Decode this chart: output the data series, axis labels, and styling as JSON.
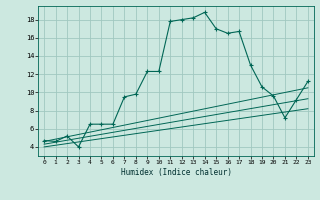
{
  "xlabel": "Humidex (Indice chaleur)",
  "ylabel": "",
  "bg_color": "#cce8e0",
  "grid_color": "#a0c8c0",
  "line_color": "#006655",
  "xlim": [
    -0.5,
    23.5
  ],
  "ylim": [
    3.0,
    19.5
  ],
  "xticks": [
    0,
    1,
    2,
    3,
    4,
    5,
    6,
    7,
    8,
    9,
    10,
    11,
    12,
    13,
    14,
    15,
    16,
    17,
    18,
    19,
    20,
    21,
    22,
    23
  ],
  "yticks": [
    4,
    6,
    8,
    10,
    12,
    14,
    16,
    18
  ],
  "main_curve_x": [
    0,
    1,
    2,
    3,
    4,
    5,
    6,
    7,
    8,
    9,
    10,
    11,
    12,
    13,
    14,
    15,
    16,
    17,
    18,
    19,
    20,
    21,
    22,
    23
  ],
  "main_curve_y": [
    4.7,
    4.6,
    5.2,
    4.0,
    6.5,
    6.5,
    6.5,
    9.5,
    9.8,
    12.3,
    12.3,
    17.8,
    18.0,
    18.2,
    18.8,
    17.0,
    16.5,
    16.7,
    13.0,
    10.6,
    9.6,
    7.2,
    9.2,
    11.2
  ],
  "line2_x": [
    0,
    23
  ],
  "line2_y": [
    4.6,
    10.5
  ],
  "line3_x": [
    0,
    23
  ],
  "line3_y": [
    4.3,
    9.3
  ],
  "line4_x": [
    0,
    23
  ],
  "line4_y": [
    4.0,
    8.2
  ]
}
